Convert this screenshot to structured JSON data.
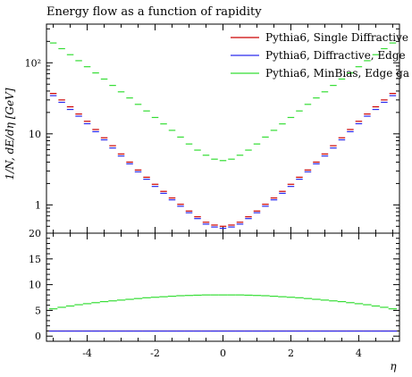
{
  "chart_data": [
    {
      "panel": "main",
      "type": "line",
      "title": "Energy flow as a function of rapidity",
      "xlabel": "",
      "ylabel": "1/N, dE/dη [GeV]",
      "yscale": "log",
      "ylim": [
        0.4,
        350
      ],
      "xlim": [
        -5.2,
        5.2
      ],
      "y_tick_labels": [
        "1",
        "10",
        "10²"
      ],
      "y_ticks": [
        1,
        10,
        100
      ],
      "x": [
        -5.0,
        -4.75,
        -4.5,
        -4.25,
        -4.0,
        -3.75,
        -3.5,
        -3.25,
        -3.0,
        -2.75,
        -2.5,
        -2.25,
        -2.0,
        -1.75,
        -1.5,
        -1.25,
        -1.0,
        -0.75,
        -0.5,
        -0.25,
        0.0,
        0.25,
        0.5,
        0.75,
        1.0,
        1.25,
        1.5,
        1.75,
        2.0,
        2.25,
        2.5,
        2.75,
        3.0,
        3.25,
        3.5,
        3.75,
        4.0,
        4.25,
        4.5,
        4.75,
        5.0
      ],
      "series": [
        {
          "name": "Pythia6, Single Diffractive",
          "color": "#cc0000",
          "values": [
            37,
            30,
            24,
            19,
            15,
            11.5,
            8.8,
            6.8,
            5.2,
            4.0,
            3.1,
            2.45,
            1.95,
            1.55,
            1.25,
            1.02,
            0.82,
            0.68,
            0.57,
            0.52,
            0.5,
            0.52,
            0.57,
            0.68,
            0.82,
            1.02,
            1.25,
            1.55,
            1.95,
            2.45,
            3.1,
            4.0,
            5.2,
            6.8,
            8.8,
            11.5,
            15,
            19,
            24,
            30,
            37
          ]
        },
        {
          "name": "Pythia6, Diffractive, Edge",
          "color": "#2a2aee",
          "values": [
            36,
            29,
            23,
            18.5,
            14.5,
            11.2,
            8.6,
            6.6,
            5.1,
            3.95,
            3.05,
            2.4,
            1.9,
            1.52,
            1.23,
            1.0,
            0.81,
            0.67,
            0.56,
            0.51,
            0.49,
            0.51,
            0.56,
            0.67,
            0.81,
            1.0,
            1.23,
            1.52,
            1.9,
            2.4,
            3.05,
            3.95,
            5.1,
            6.6,
            8.6,
            11.2,
            14.5,
            18.5,
            23,
            29,
            36
          ]
        },
        {
          "name": "Pythia6, MinBias, Edge ga",
          "color": "#33dd33",
          "values": [
            190,
            158,
            130,
            107,
            88,
            72,
            59,
            48,
            39,
            32,
            26,
            21,
            17,
            13.8,
            11.2,
            9.0,
            7.2,
            5.9,
            5.0,
            4.4,
            4.2,
            4.4,
            5.0,
            5.9,
            7.2,
            9.0,
            11.2,
            13.8,
            17,
            21,
            26,
            32,
            39,
            48,
            59,
            72,
            88,
            107,
            130,
            158,
            190
          ]
        }
      ]
    },
    {
      "panel": "ratio",
      "type": "line",
      "xlabel": "η",
      "ylabel": "",
      "ylim": [
        -1,
        20
      ],
      "xlim": [
        -5.2,
        5.2
      ],
      "y_ticks": [
        0,
        5,
        10,
        15,
        20
      ],
      "y_tick_labels": [
        "0",
        "5",
        "10",
        "15",
        "20"
      ],
      "x_ticks": [
        -4,
        -2,
        0,
        2,
        4
      ],
      "x_tick_labels": [
        "-4",
        "-2",
        "0",
        "2",
        "4"
      ],
      "x": [
        -5.0,
        -4.75,
        -4.5,
        -4.25,
        -4.0,
        -3.75,
        -3.5,
        -3.25,
        -3.0,
        -2.75,
        -2.5,
        -2.25,
        -2.0,
        -1.75,
        -1.5,
        -1.25,
        -1.0,
        -0.75,
        -0.5,
        -0.25,
        0.0,
        0.25,
        0.5,
        0.75,
        1.0,
        1.25,
        1.5,
        1.75,
        2.0,
        2.25,
        2.5,
        2.75,
        3.0,
        3.25,
        3.5,
        3.75,
        4.0,
        4.25,
        4.5,
        4.75,
        5.0
      ],
      "series": [
        {
          "name": "Pythia6, Single Diffractive",
          "color": "#cc0000",
          "values": [
            1,
            1,
            1,
            1,
            1,
            1,
            1,
            1,
            1,
            1,
            1,
            1,
            1,
            1,
            1,
            1,
            1,
            1,
            1,
            1,
            1,
            1,
            1,
            1,
            1,
            1,
            1,
            1,
            1,
            1,
            1,
            1,
            1,
            1,
            1,
            1,
            1,
            1,
            1,
            1,
            1
          ]
        },
        {
          "name": "Pythia6, Diffractive, Edge",
          "color": "#2a2aee",
          "values": [
            0.98,
            0.98,
            0.98,
            0.98,
            0.98,
            0.98,
            0.98,
            0.98,
            0.98,
            0.98,
            0.98,
            0.98,
            0.98,
            0.98,
            0.98,
            0.98,
            0.98,
            0.98,
            0.98,
            0.98,
            0.98,
            0.98,
            0.98,
            0.98,
            0.98,
            0.98,
            0.98,
            0.98,
            0.98,
            0.98,
            0.98,
            0.98,
            0.98,
            0.98,
            0.98,
            0.98,
            0.98,
            0.98,
            0.98,
            0.98,
            0.98
          ]
        },
        {
          "name": "Pythia6, MinBias, Edge ga",
          "color": "#33dd33",
          "values": [
            5.3,
            5.6,
            5.85,
            6.1,
            6.3,
            6.5,
            6.7,
            6.85,
            7.0,
            7.15,
            7.3,
            7.45,
            7.55,
            7.65,
            7.75,
            7.85,
            7.9,
            7.95,
            8.0,
            8.0,
            8.0,
            8.0,
            8.0,
            7.95,
            7.9,
            7.85,
            7.75,
            7.65,
            7.55,
            7.45,
            7.3,
            7.15,
            7.0,
            6.85,
            6.7,
            6.5,
            6.3,
            6.1,
            5.85,
            5.6,
            5.3
          ]
        }
      ]
    }
  ],
  "legend_position": "top-right"
}
